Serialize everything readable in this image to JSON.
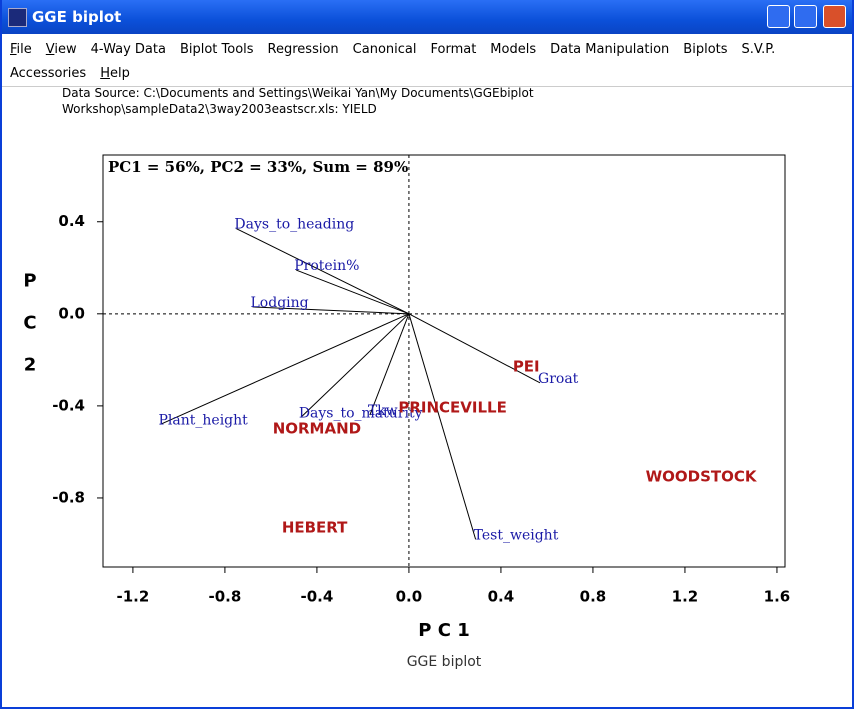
{
  "window": {
    "title": "GGE biplot"
  },
  "menu": [
    "File",
    "View",
    "4-Way Data",
    "Biplot Tools",
    "Regression",
    "Canonical",
    "Format",
    "Models",
    "Data Manipulation",
    "Biplots",
    "S.V.P.",
    "Accessories",
    "Help"
  ],
  "data_source": [
    "Data Source: C:\\Documents and Settings\\Weikai Yan\\My Documents\\GGEbiplot",
    "Workshop\\sampleData2\\3way2003eastscr.xls: YIELD"
  ],
  "chart_data": {
    "type": "biplot",
    "annotation": "PC1 = 56%, PC2 = 33%, Sum = 89%",
    "x_label": "P C 1",
    "y_label": "P C 2",
    "caption": "GGE biplot",
    "xlim": [
      -1.33,
      1.635
    ],
    "ylim": [
      -1.1,
      0.69
    ],
    "xticks": [
      -1.2,
      -0.8,
      -0.4,
      {
        "value": 0,
        "label": "0.0"
      },
      0.4,
      0.8,
      1.2,
      1.6
    ],
    "yticks": [
      0.4,
      {
        "value": 0,
        "label": "0.0"
      },
      -0.4,
      -0.8
    ],
    "traits": {
      "color": "#1a1aa6",
      "labels": [
        "Days_to_heading",
        "Protein%",
        "Lodging",
        "Plant_height",
        "Days_to_maturity",
        "Tkw",
        "Test_weight",
        "Groat"
      ],
      "x": [
        -0.75,
        -0.49,
        -0.68,
        -1.08,
        -0.47,
        -0.17,
        0.29,
        0.57
      ],
      "y": [
        0.37,
        0.19,
        0.03,
        -0.48,
        -0.45,
        -0.44,
        -0.98,
        -0.3
      ]
    },
    "environments": {
      "color": "#b01818",
      "labels": [
        "PEI",
        "PRINCEVILLE",
        "NORMAND",
        "WOODSTOCK",
        "HEBERT"
      ],
      "x": [
        0.51,
        0.19,
        -0.4,
        1.27,
        -0.41
      ],
      "y": [
        -0.23,
        -0.41,
        -0.5,
        -0.71,
        -0.93
      ]
    }
  }
}
